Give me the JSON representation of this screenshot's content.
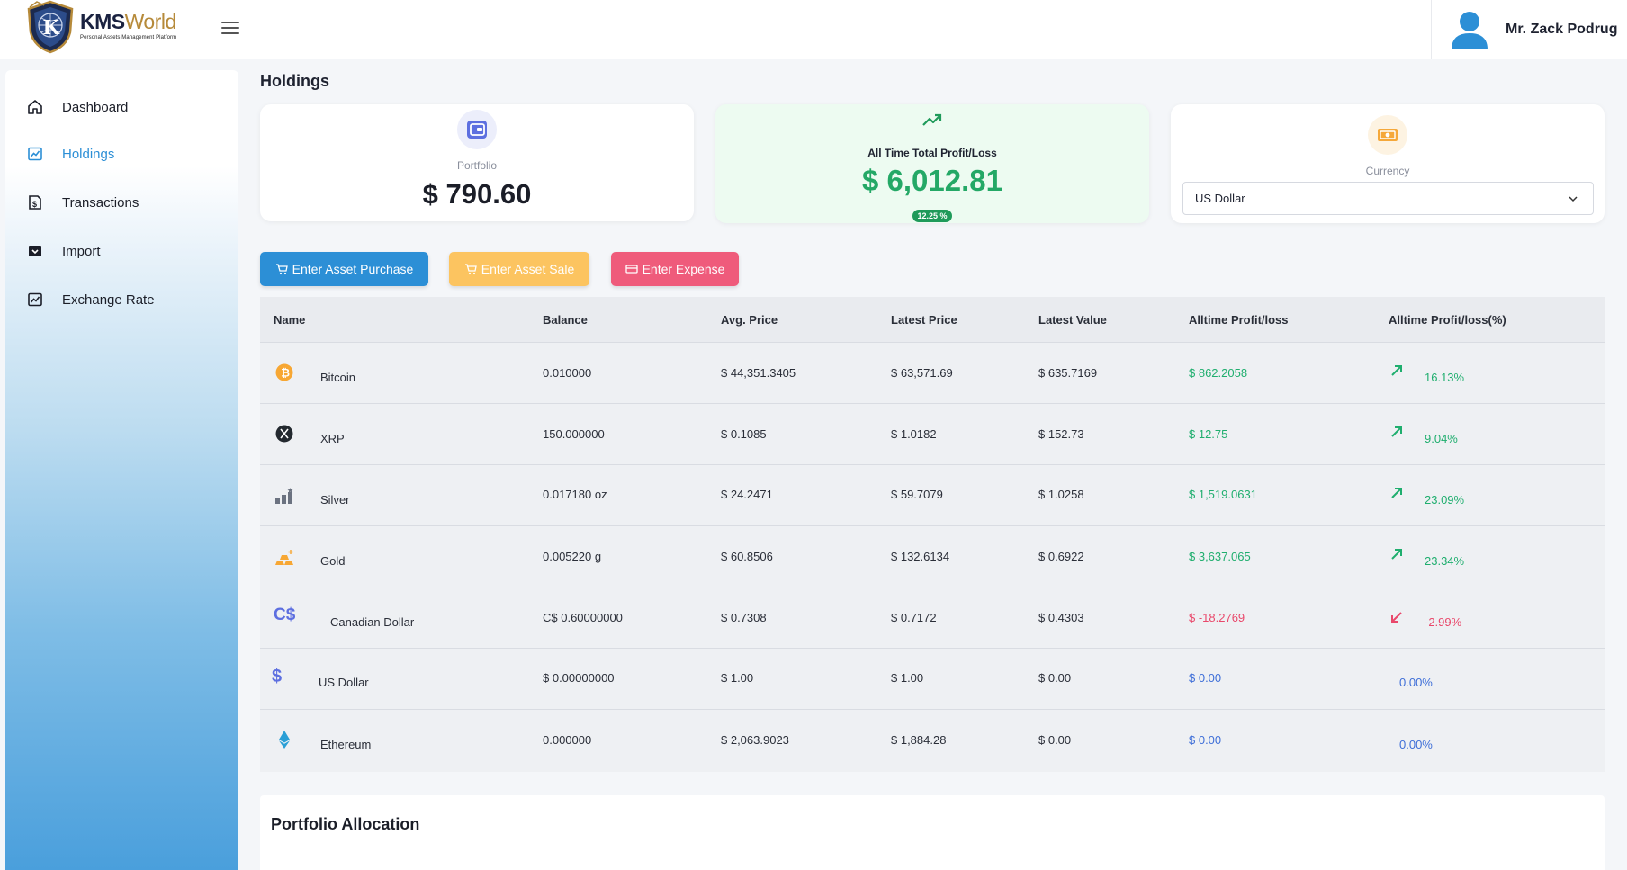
{
  "header": {
    "brand_main": "KMS",
    "brand_accent": "World",
    "brand_tagline": "Personal Assets Management Platform",
    "user_name": "Mr. Zack Podrug"
  },
  "sidebar": {
    "items": [
      {
        "label": "Dashboard",
        "icon": "home-icon",
        "active": false
      },
      {
        "label": "Holdings",
        "icon": "chart-icon",
        "active": true
      },
      {
        "label": "Transactions",
        "icon": "receipt-icon",
        "active": false
      },
      {
        "label": "Import",
        "icon": "import-icon",
        "active": false
      },
      {
        "label": "Exchange Rate",
        "icon": "exchange-chart-icon",
        "active": false
      }
    ]
  },
  "page": {
    "title": "Holdings"
  },
  "cards": {
    "portfolio": {
      "label": "Portfolio",
      "value": "$ 790.60",
      "icon": "wallet-icon"
    },
    "profit": {
      "label": "All Time Total Profit/Loss",
      "value": "$ 6,012.81",
      "badge": "12.25 %",
      "icon": "trending-up-icon"
    },
    "currency": {
      "label": "Currency",
      "selected": "US Dollar",
      "icon": "banknote-icon"
    }
  },
  "buttons": {
    "purchase": "Enter Asset Purchase",
    "sale": "Enter Asset Sale",
    "expense": "Enter Expense"
  },
  "table": {
    "headers": [
      "Name",
      "Balance",
      "Avg. Price",
      "Latest Price",
      "Latest Value",
      "Alltime Profit/loss",
      "Alltime Profit/loss(%)"
    ],
    "rows": [
      {
        "name": "Bitcoin",
        "icon": "bitcoin-icon",
        "balance": "0.010000",
        "avg_price": "$ 44,351.3405",
        "latest_price": "$ 63,571.69",
        "latest_value": "$ 635.7169",
        "profit": "$ 862.2058",
        "profit_pct": "16.13%",
        "trend": "up"
      },
      {
        "name": "XRP",
        "icon": "xrp-icon",
        "balance": "150.000000",
        "avg_price": "$ 0.1085",
        "latest_price": "$ 1.0182",
        "latest_value": "$ 152.73",
        "profit": "$ 12.75",
        "profit_pct": "9.04%",
        "trend": "up"
      },
      {
        "name": "Silver",
        "icon": "silver-bars-icon",
        "balance": "0.017180 oz",
        "avg_price": "$ 24.2471",
        "latest_price": "$ 59.7079",
        "latest_value": "$ 1.0258",
        "profit": "$ 1,519.0631",
        "profit_pct": "23.09%",
        "trend": "up"
      },
      {
        "name": "Gold",
        "icon": "gold-bars-icon",
        "balance": "0.005220 g",
        "avg_price": "$ 60.8506",
        "latest_price": "$ 132.6134",
        "latest_value": "$ 0.6922",
        "profit": "$ 3,637.065",
        "profit_pct": "23.34%",
        "trend": "up"
      },
      {
        "name": "Canadian Dollar",
        "icon": "cad-icon",
        "icon_text": "C$",
        "balance": "C$ 0.60000000",
        "avg_price": "$ 0.7308",
        "latest_price": "$ 0.7172",
        "latest_value": "$ 0.4303",
        "profit": "$ -18.2769",
        "profit_pct": "-2.99%",
        "trend": "down"
      },
      {
        "name": "US Dollar",
        "icon": "usd-icon",
        "icon_text": "$",
        "balance": "$ 0.00000000",
        "avg_price": "$ 1.00",
        "latest_price": "$ 1.00",
        "latest_value": "$ 0.00",
        "profit": "$ 0.00",
        "profit_pct": "0.00%",
        "trend": "none"
      },
      {
        "name": "Ethereum",
        "icon": "ethereum-icon",
        "balance": "0.000000",
        "avg_price": "$ 2,063.9023",
        "latest_price": "$ 1,884.28",
        "latest_value": "$ 0.00",
        "profit": "$ 0.00",
        "profit_pct": "0.00%",
        "trend": "none"
      }
    ]
  },
  "allocation": {
    "title": "Portfolio Allocation"
  },
  "colors": {
    "accent": "#2c8fd6",
    "positive": "#1fae6e",
    "negative": "#e9486b",
    "neutral": "#3f6fd8",
    "sale": "#fcc460",
    "expense": "#ef5b7b"
  }
}
